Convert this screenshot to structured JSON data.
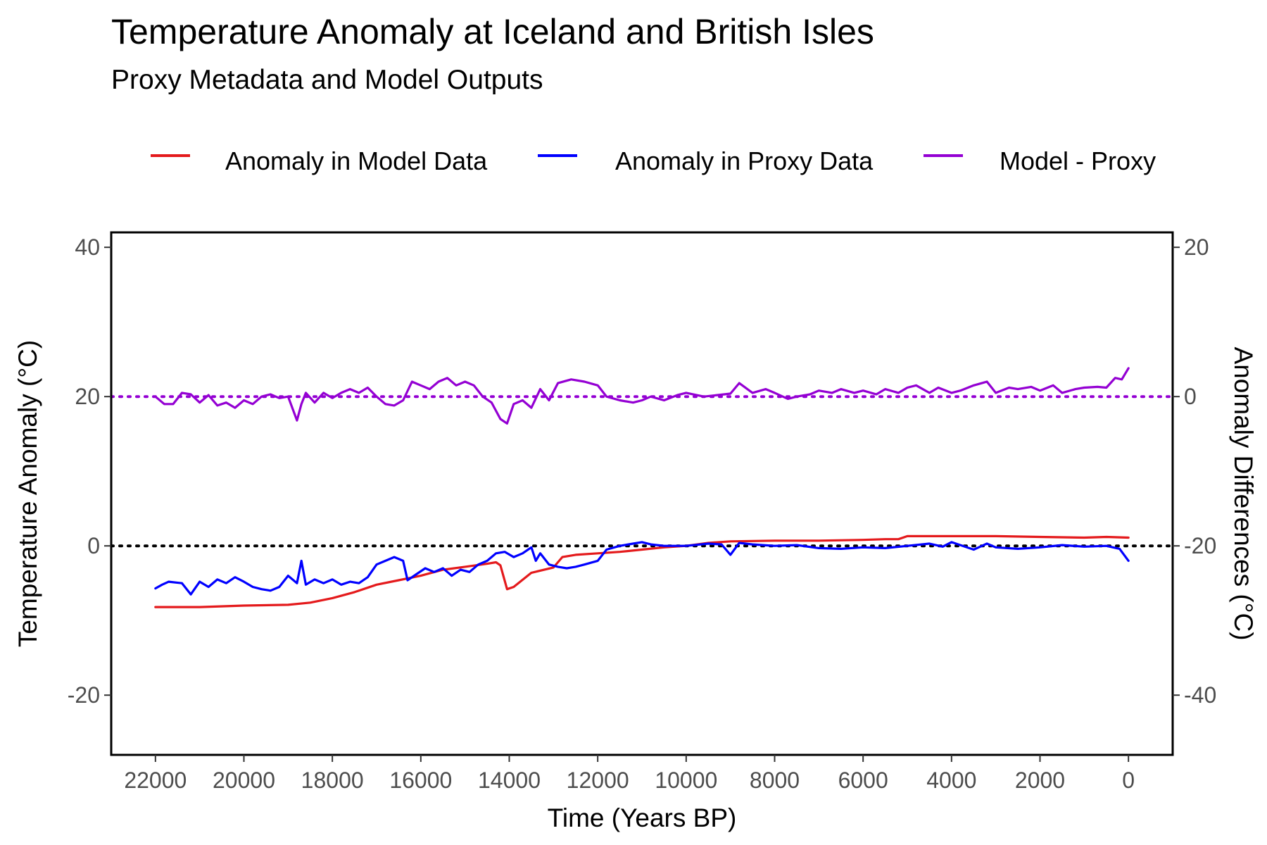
{
  "title": "Temperature Anomaly at Iceland and British Isles",
  "subtitle": "Proxy Metadata and Model Outputs",
  "chart_data": {
    "type": "line",
    "title": "Temperature Anomaly at Iceland and British Isles",
    "subtitle": "Proxy Metadata and Model Outputs",
    "xlabel": "Time (Years BP)",
    "ylabel": "Temperature Anomaly (°C)",
    "y2label": "Anomaly Differences (°C)",
    "xlim": [
      23000,
      -1000
    ],
    "x_reversed": true,
    "ylim": [
      -28,
      42
    ],
    "y2lim": [
      -48,
      22
    ],
    "y2_offset": 20,
    "x_ticks": [
      22000,
      20000,
      18000,
      16000,
      14000,
      12000,
      10000,
      8000,
      6000,
      4000,
      2000,
      0
    ],
    "x_tick_labels": [
      "22000",
      "20000",
      "18000",
      "16000",
      "14000",
      "12000",
      "10000",
      "8000",
      "6000",
      "4000",
      "2000",
      "0"
    ],
    "y_ticks": [
      -20,
      0,
      20,
      40
    ],
    "y_tick_labels": [
      "-20",
      "0",
      "20",
      "40"
    ],
    "y2_ticks": [
      -40,
      -20,
      0,
      20
    ],
    "y2_tick_labels": [
      "-40",
      "-20",
      "0",
      "20"
    ],
    "grid": false,
    "legend_position": "top",
    "reference_lines": [
      {
        "axis": "y",
        "value": 0,
        "color": "#000000",
        "style": "dotted"
      },
      {
        "axis": "y2",
        "value": 0,
        "color": "#9400d3",
        "style": "dotted"
      }
    ],
    "series": [
      {
        "name": "Anomaly in Model Data",
        "color": "#e41a1c",
        "axis": "y",
        "x": [
          22000,
          21000,
          20000,
          19000,
          18500,
          18000,
          17500,
          17000,
          16500,
          16000,
          15500,
          15000,
          14500,
          14300,
          14200,
          14050,
          13900,
          13500,
          13000,
          12800,
          12500,
          12000,
          11500,
          11000,
          10500,
          10000,
          9500,
          9000,
          8000,
          7000,
          6000,
          5500,
          5200,
          5000,
          4500,
          4000,
          3000,
          2000,
          1000,
          500,
          0
        ],
        "values": [
          -8.2,
          -8.2,
          -8.0,
          -7.9,
          -7.6,
          -7.0,
          -6.2,
          -5.2,
          -4.6,
          -4.0,
          -3.2,
          -2.8,
          -2.4,
          -2.2,
          -2.6,
          -5.8,
          -5.5,
          -3.6,
          -2.9,
          -1.5,
          -1.2,
          -1.0,
          -0.8,
          -0.5,
          -0.2,
          0.0,
          0.4,
          0.6,
          0.7,
          0.7,
          0.8,
          0.9,
          0.9,
          1.3,
          1.3,
          1.3,
          1.3,
          1.2,
          1.1,
          1.2,
          1.1
        ]
      },
      {
        "name": "Anomaly in Proxy Data",
        "color": "#0000ff",
        "axis": "y",
        "x": [
          22000,
          21850,
          21700,
          21400,
          21200,
          21000,
          20800,
          20600,
          20400,
          20200,
          20000,
          19800,
          19600,
          19400,
          19200,
          19000,
          18800,
          18700,
          18600,
          18400,
          18200,
          18000,
          17800,
          17600,
          17400,
          17200,
          17000,
          16800,
          16600,
          16400,
          16300,
          16100,
          15900,
          15700,
          15500,
          15300,
          15100,
          14900,
          14700,
          14500,
          14300,
          14100,
          13900,
          13700,
          13500,
          13400,
          13300,
          13100,
          12900,
          12700,
          12500,
          12300,
          12000,
          11800,
          11500,
          11200,
          11000,
          10800,
          10500,
          10000,
          9500,
          9200,
          9000,
          8800,
          8500,
          8000,
          7500,
          7000,
          6500,
          6000,
          5500,
          5000,
          4500,
          4200,
          4000,
          3500,
          3200,
          3000,
          2500,
          2000,
          1500,
          1000,
          500,
          200,
          0
        ],
        "values": [
          -5.7,
          -5.2,
          -4.8,
          -5.0,
          -6.5,
          -4.8,
          -5.5,
          -4.5,
          -5.0,
          -4.2,
          -4.8,
          -5.5,
          -5.8,
          -6.0,
          -5.5,
          -4.0,
          -5.0,
          -2.0,
          -5.2,
          -4.5,
          -5.0,
          -4.5,
          -5.2,
          -4.8,
          -5.0,
          -4.2,
          -2.5,
          -2.0,
          -1.5,
          -2.0,
          -4.6,
          -3.8,
          -3.0,
          -3.5,
          -3.0,
          -4.0,
          -3.2,
          -3.5,
          -2.5,
          -2.0,
          -1.0,
          -0.8,
          -1.5,
          -1.0,
          -0.2,
          -2.0,
          -1.0,
          -2.5,
          -2.8,
          -3.0,
          -2.8,
          -2.5,
          -2.0,
          -0.5,
          0.0,
          0.3,
          0.5,
          0.2,
          0.0,
          0.0,
          0.3,
          0.2,
          -1.2,
          0.4,
          0.2,
          0.0,
          0.1,
          -0.3,
          -0.4,
          -0.2,
          -0.3,
          0.0,
          0.3,
          -0.1,
          0.5,
          -0.5,
          0.3,
          -0.2,
          -0.4,
          -0.2,
          0.1,
          -0.1,
          0.0,
          -0.4,
          -2.0
        ]
      },
      {
        "name": "Model - Proxy",
        "color": "#9400d3",
        "axis": "y2",
        "x": [
          22000,
          21800,
          21600,
          21400,
          21200,
          21000,
          20800,
          20600,
          20400,
          20200,
          20000,
          19800,
          19600,
          19400,
          19200,
          19000,
          18800,
          18700,
          18600,
          18400,
          18200,
          18000,
          17800,
          17600,
          17400,
          17200,
          17000,
          16800,
          16600,
          16400,
          16200,
          16000,
          15800,
          15600,
          15400,
          15200,
          15000,
          14800,
          14600,
          14400,
          14200,
          14050,
          13900,
          13700,
          13500,
          13300,
          13100,
          12900,
          12600,
          12300,
          12000,
          11800,
          11500,
          11200,
          11000,
          10800,
          10500,
          10200,
          10000,
          9600,
          9300,
          9000,
          8800,
          8500,
          8200,
          8000,
          7700,
          7500,
          7200,
          7000,
          6700,
          6500,
          6200,
          6000,
          5700,
          5500,
          5200,
          5000,
          4800,
          4500,
          4300,
          4000,
          3800,
          3500,
          3200,
          3000,
          2700,
          2500,
          2200,
          2000,
          1700,
          1500,
          1200,
          1000,
          700,
          500,
          300,
          150,
          0
        ],
        "values": [
          0.0,
          -1.0,
          -1.0,
          0.5,
          0.3,
          -0.8,
          0.2,
          -1.2,
          -0.8,
          -1.5,
          -0.5,
          -1.0,
          0.0,
          0.3,
          -0.2,
          0.0,
          -3.2,
          -1.0,
          0.5,
          -0.8,
          0.5,
          -0.2,
          0.5,
          1.0,
          0.5,
          1.2,
          0.0,
          -1.0,
          -1.2,
          -0.5,
          2.0,
          1.5,
          1.0,
          2.0,
          2.5,
          1.5,
          2.0,
          1.5,
          0.0,
          -0.8,
          -3.0,
          -3.6,
          -1.0,
          -0.5,
          -1.5,
          1.0,
          -0.5,
          1.8,
          2.3,
          2.0,
          1.5,
          0.0,
          -0.5,
          -0.8,
          -0.5,
          0.0,
          -0.5,
          0.2,
          0.5,
          0.0,
          0.2,
          0.4,
          1.8,
          0.5,
          1.0,
          0.5,
          -0.3,
          0.0,
          0.3,
          0.8,
          0.5,
          1.0,
          0.5,
          0.8,
          0.3,
          1.0,
          0.5,
          1.2,
          1.5,
          0.5,
          1.2,
          0.5,
          0.8,
          1.5,
          2.0,
          0.5,
          1.2,
          1.0,
          1.3,
          0.8,
          1.5,
          0.5,
          1.0,
          1.2,
          1.3,
          1.2,
          2.5,
          2.3,
          3.8
        ]
      }
    ]
  }
}
